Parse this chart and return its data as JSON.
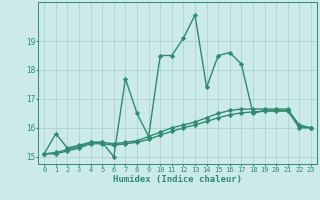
{
  "xlabel": "Humidex (Indice chaleur)",
  "x": [
    0,
    1,
    2,
    3,
    4,
    5,
    6,
    7,
    8,
    9,
    10,
    11,
    12,
    13,
    14,
    15,
    16,
    17,
    18,
    19,
    20,
    21,
    22,
    23
  ],
  "line1": [
    15.1,
    15.8,
    15.3,
    15.4,
    15.5,
    15.5,
    15.0,
    17.7,
    16.5,
    15.7,
    18.5,
    18.5,
    19.1,
    19.9,
    17.4,
    18.5,
    18.6,
    18.2,
    16.5,
    16.6,
    16.6,
    16.6,
    16.1,
    16.0
  ],
  "line2": [
    15.1,
    15.15,
    15.25,
    15.35,
    15.5,
    15.5,
    15.45,
    15.5,
    15.55,
    15.7,
    15.85,
    16.0,
    16.1,
    16.2,
    16.35,
    16.5,
    16.6,
    16.65,
    16.65,
    16.65,
    16.65,
    16.65,
    16.05,
    16.0
  ],
  "line3": [
    15.1,
    15.1,
    15.2,
    15.3,
    15.45,
    15.45,
    15.4,
    15.45,
    15.5,
    15.6,
    15.75,
    15.88,
    16.0,
    16.1,
    16.22,
    16.35,
    16.45,
    16.52,
    16.55,
    16.58,
    16.58,
    16.58,
    16.0,
    16.0
  ],
  "color": "#2e8b6e",
  "bg_color": "#cceaea",
  "grid_color": "#aad4d4",
  "ylim": [
    14.75,
    20.35
  ],
  "yticks": [
    15,
    16,
    17,
    18,
    19
  ],
  "marker": "D",
  "marker_size": 2.2,
  "linewidth": 1.0
}
